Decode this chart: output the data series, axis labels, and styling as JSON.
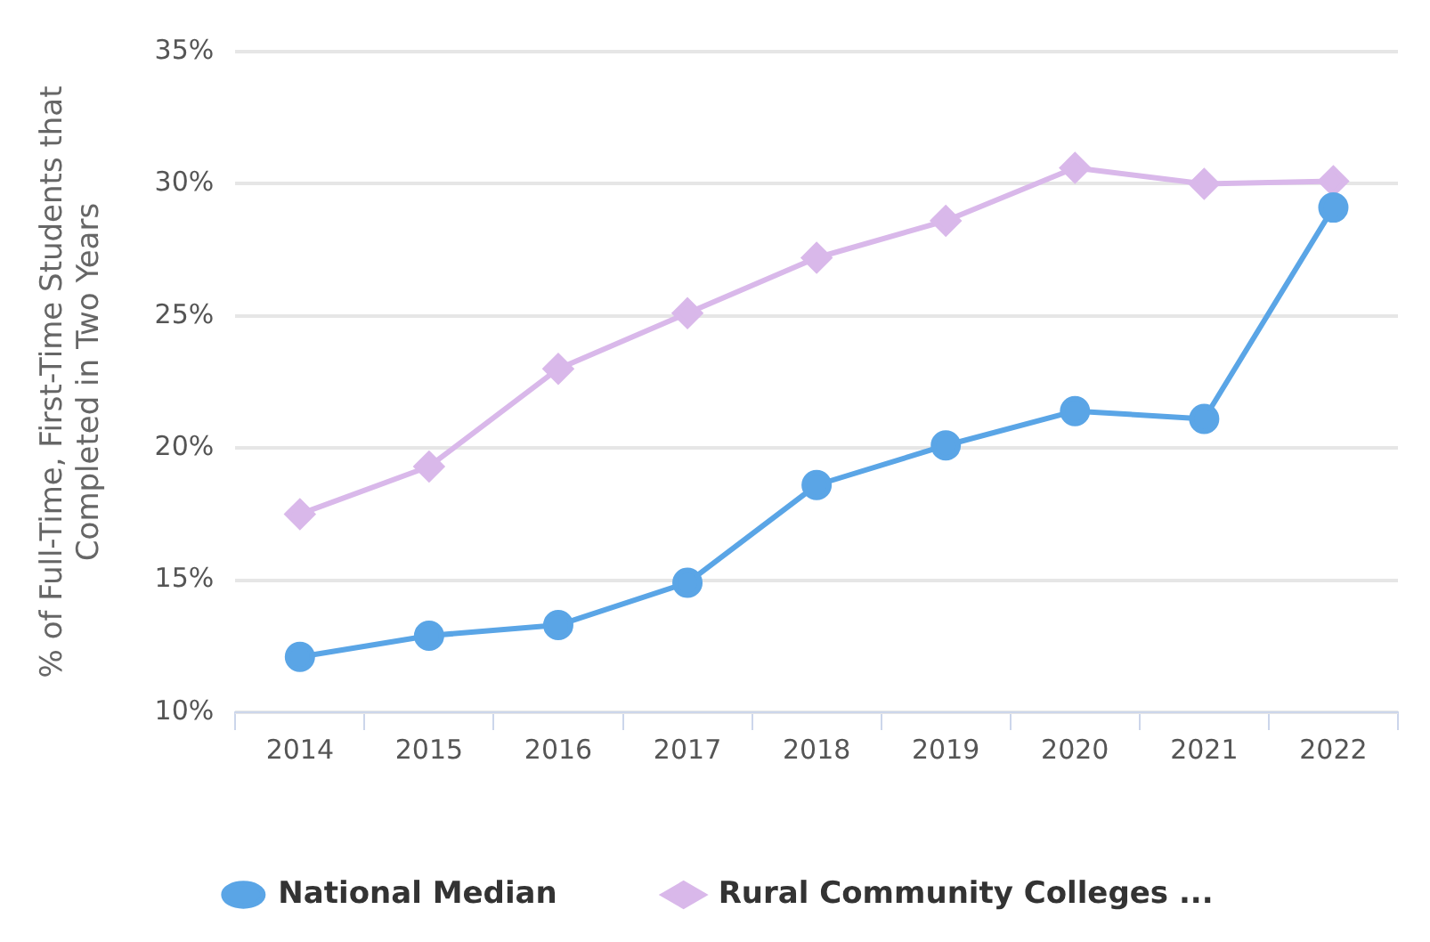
{
  "chart_data": {
    "type": "line",
    "ylabel": "% of Full-Time, First-Time Students that Completed in Two Years",
    "categories": [
      "2014",
      "2015",
      "2016",
      "2017",
      "2018",
      "2019",
      "2020",
      "2021",
      "2022"
    ],
    "series": [
      {
        "name": "National Median",
        "color": "#5aa5e6",
        "marker": "circle",
        "values": [
          12.1,
          12.9,
          13.3,
          14.9,
          18.6,
          20.1,
          21.4,
          21.1,
          29.1
        ]
      },
      {
        "name": "Rural Community Colleges ...",
        "color": "#d9b8ea",
        "marker": "diamond",
        "values": [
          17.5,
          19.3,
          23.0,
          25.1,
          27.2,
          28.6,
          30.6,
          30.0,
          30.1
        ]
      }
    ],
    "ylim": [
      10,
      35
    ],
    "yticks": [
      {
        "value": 10,
        "label": "10%"
      },
      {
        "value": 15,
        "label": "15%"
      },
      {
        "value": 20,
        "label": "20%"
      },
      {
        "value": 25,
        "label": "25%"
      },
      {
        "value": 30,
        "label": "30%"
      },
      {
        "value": 35,
        "label": "35%"
      }
    ],
    "grid": "y",
    "legend": "bottom"
  }
}
